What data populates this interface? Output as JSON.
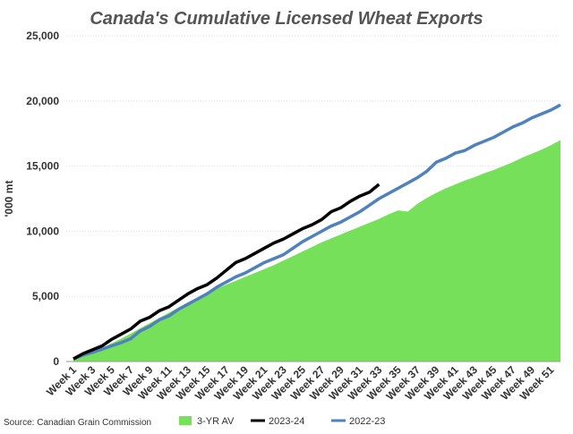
{
  "chart_data": {
    "type": "area-line",
    "title": "Canada's Cumulative Licensed Wheat Exports",
    "y_label": "'000 mt",
    "source": "Source: Canadian Grain Commission",
    "categories": [
      "Week 1",
      null,
      "Week 3",
      null,
      "Week 5",
      null,
      "Week 7",
      null,
      "Week 9",
      null,
      "Week 11",
      null,
      "Week 13",
      null,
      "Week 15",
      null,
      "Week 17",
      null,
      "Week 19",
      null,
      "Week 21",
      null,
      "Week 23",
      null,
      "Week 25",
      null,
      "Week 27",
      null,
      "Week 29",
      null,
      "Week 31",
      null,
      "Week 33",
      null,
      "Week 35",
      null,
      "Week 37",
      null,
      "Week 39",
      null,
      "Week 41",
      null,
      "Week 43",
      null,
      "Week 45",
      null,
      "Week 47",
      null,
      "Week 49",
      null,
      "Week 51",
      null
    ],
    "series": [
      {
        "name": "3-YR AV",
        "kind": "area",
        "color": "#77e05a",
        "values": [
          200,
          500,
          750,
          1050,
          1400,
          1750,
          2150,
          2550,
          2950,
          3350,
          3750,
          4150,
          4550,
          4900,
          5250,
          5600,
          5900,
          6200,
          6500,
          6800,
          7100,
          7400,
          7750,
          8100,
          8450,
          8800,
          9150,
          9450,
          9750,
          10050,
          10350,
          10650,
          10950,
          11300,
          11600,
          11500,
          12100,
          12550,
          12950,
          13300,
          13600,
          13900,
          14150,
          14450,
          14700,
          15000,
          15300,
          15650,
          15950,
          16250,
          16600,
          17000
        ]
      },
      {
        "name": "2023-24",
        "kind": "line",
        "color": "#000000",
        "values": [
          200,
          600,
          900,
          1200,
          1700,
          2100,
          2500,
          3100,
          3400,
          3900,
          4200,
          4700,
          5200,
          5600,
          5900,
          6400,
          7000,
          7600,
          7900,
          8300,
          8700,
          9100,
          9400,
          9800,
          10200,
          10500,
          10900,
          11500,
          11800,
          12300,
          12700,
          13000,
          13600,
          null,
          null,
          null,
          null,
          null,
          null,
          null,
          null,
          null,
          null,
          null,
          null,
          null,
          null,
          null,
          null,
          null,
          null,
          null
        ]
      },
      {
        "name": "2022-23",
        "kind": "line",
        "color": "#4f81bd",
        "values": [
          200,
          500,
          700,
          950,
          1200,
          1450,
          1750,
          2350,
          2700,
          3200,
          3500,
          4000,
          4400,
          4800,
          5200,
          5700,
          6100,
          6500,
          6800,
          7200,
          7600,
          7900,
          8200,
          8700,
          9200,
          9600,
          10000,
          10400,
          10700,
          11100,
          11500,
          12000,
          12500,
          12900,
          13300,
          13700,
          14100,
          14600,
          15300,
          15600,
          16000,
          16200,
          16600,
          16900,
          17200,
          17600,
          18000,
          18300,
          18700,
          19000,
          19300,
          19700
        ]
      }
    ],
    "ylim": [
      0,
      25000
    ],
    "yticks": [
      0,
      {
        "value": 5000,
        "label": "5,000"
      },
      {
        "value": 10000,
        "label": "10,000"
      },
      {
        "value": 15000,
        "label": "15,000"
      },
      {
        "value": 20000,
        "label": "20,000"
      },
      {
        "value": 25000,
        "label": "25,000"
      }
    ],
    "grid": true
  }
}
